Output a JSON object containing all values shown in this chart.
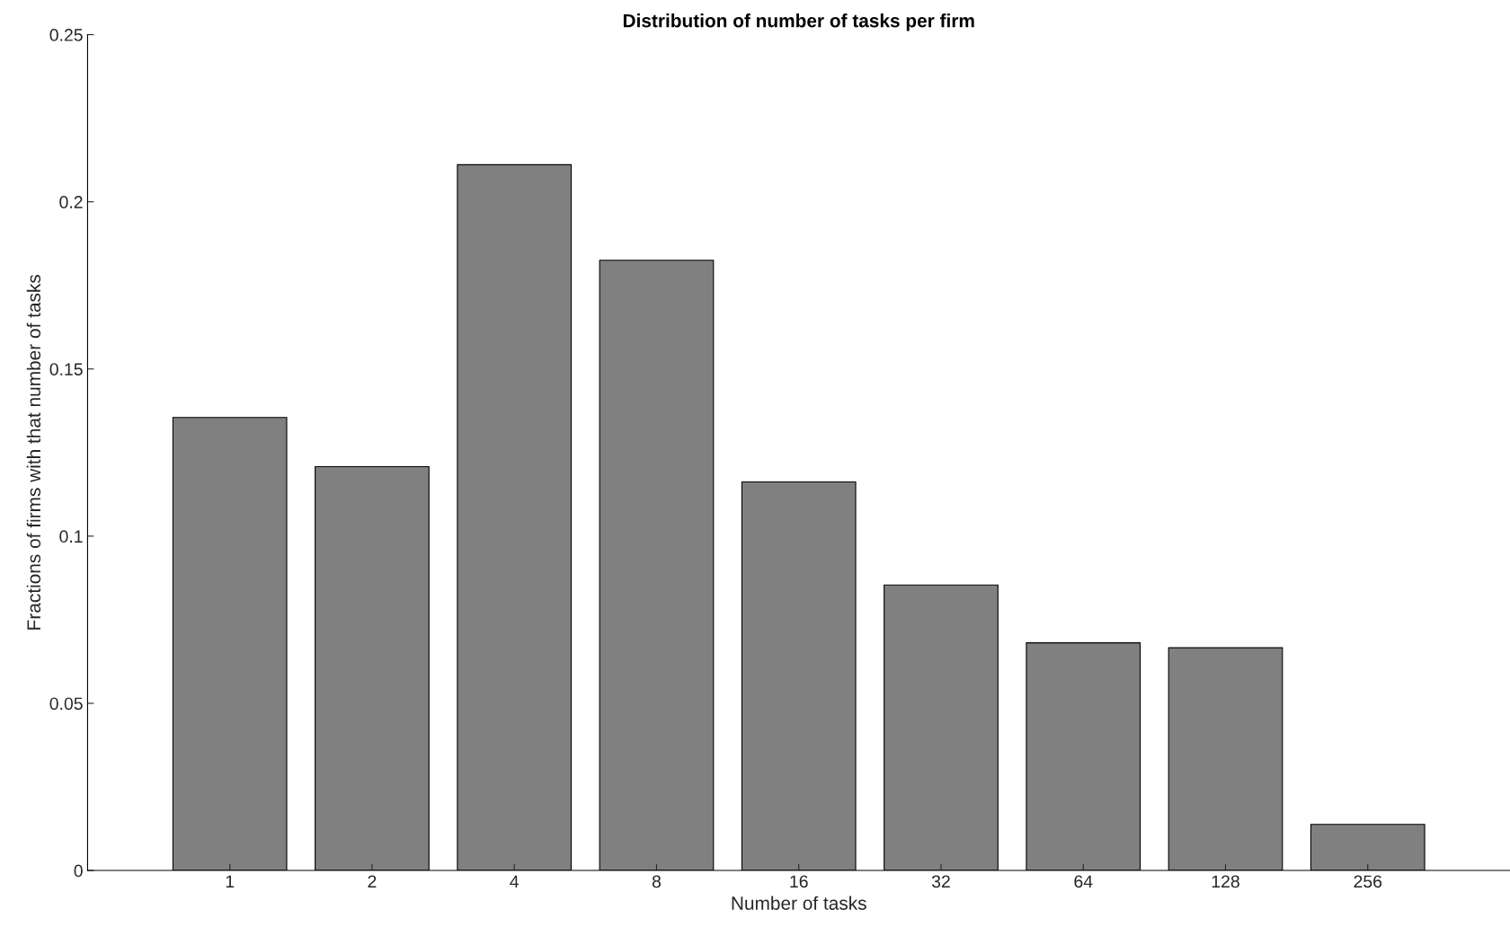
{
  "chart_data": {
    "type": "bar",
    "title": "Distribution of number of tasks per firm",
    "xlabel": "Number of tasks",
    "ylabel": "Fractions of firms with that number of tasks",
    "categories": [
      "1",
      "2",
      "4",
      "8",
      "16",
      "32",
      "64",
      "128",
      "256"
    ],
    "values": [
      0.1355,
      0.1208,
      0.2111,
      0.1825,
      0.1162,
      0.0854,
      0.0681,
      0.0666,
      0.0138
    ],
    "color": "#808080",
    "ylim": [
      0,
      0.25
    ],
    "yticks": [
      0,
      0.05,
      0.1,
      0.15,
      0.2,
      0.25
    ],
    "grid": false,
    "legend": false
  }
}
